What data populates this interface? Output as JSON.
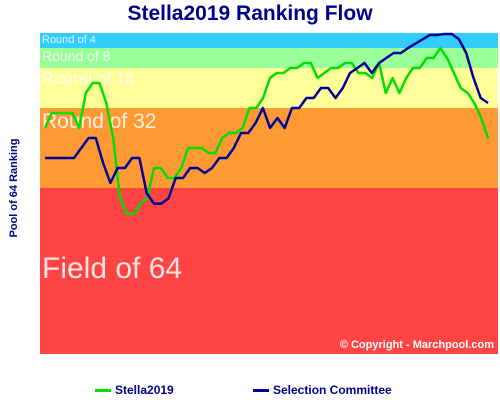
{
  "chart_data": {
    "type": "line",
    "title": "Stella2019 Ranking Flow",
    "ylabel": "Pool of 64 Ranking",
    "xlabel": "",
    "bands": [
      {
        "label": "Round of 4",
        "from": 1,
        "to": 4,
        "color": "#33ccff"
      },
      {
        "label": "Round of 8",
        "from": 5,
        "to": 8,
        "color": "#99ff99"
      },
      {
        "label": "Round of 16",
        "from": 9,
        "to": 16,
        "color": "#ffff99"
      },
      {
        "label": "Round of 32",
        "from": 17,
        "to": 32,
        "color": "#ff9933"
      },
      {
        "label": "Field of 64",
        "from": 33,
        "to": 64,
        "color": "#ff4444"
      }
    ],
    "top_strips": [
      {
        "from": 0,
        "to": 0.4,
        "color": "#9966cc"
      },
      {
        "from": 0.4,
        "to": 1,
        "color": "#3399ff"
      }
    ],
    "ylim": [
      0,
      64
    ],
    "series": [
      {
        "name": "Stella2019",
        "color": "#00e000",
        "values": [
          20,
          17,
          17,
          17,
          17,
          20,
          13,
          11,
          11,
          15,
          22,
          34,
          37,
          37,
          35,
          34,
          28,
          28,
          30,
          30,
          28,
          24,
          24,
          24,
          25,
          25,
          22,
          21,
          21,
          20,
          16,
          16,
          14,
          10,
          9,
          9,
          8,
          8,
          7,
          7,
          10,
          9,
          8,
          8,
          7,
          7,
          9,
          9,
          10,
          7,
          13,
          10,
          13,
          10,
          8,
          8,
          6,
          6,
          4,
          6,
          9,
          12,
          13,
          15,
          18,
          22
        ],
        "x": [
          0,
          1,
          2,
          3,
          4,
          5,
          6,
          7,
          8,
          9,
          10,
          11,
          12,
          13,
          14,
          15,
          16,
          17,
          18,
          19,
          20,
          21,
          22,
          23,
          24,
          25,
          26,
          27,
          28,
          29,
          30,
          31,
          32,
          33,
          34,
          35,
          36,
          37,
          38,
          39,
          40,
          41,
          42,
          43,
          44,
          45,
          46,
          47,
          48,
          49,
          50,
          51,
          52,
          53,
          54,
          55,
          56,
          57,
          58,
          59,
          60,
          61,
          62,
          63,
          64,
          65
        ]
      },
      {
        "name": "Selection Committee",
        "color": "#000099",
        "values": [
          26,
          26,
          26,
          26,
          26,
          24,
          22,
          22,
          27,
          31,
          28,
          28,
          26,
          26,
          33,
          35,
          35,
          34,
          30,
          30,
          28,
          28,
          29,
          28,
          26,
          26,
          24,
          21,
          21,
          19,
          16,
          20,
          18,
          20,
          16,
          16,
          14,
          14,
          12,
          12,
          14,
          12,
          9,
          8,
          7,
          9,
          7,
          6,
          5,
          5,
          4,
          3,
          2,
          1,
          1,
          0.5,
          0.5,
          2,
          5,
          10,
          14,
          15
        ]
      }
    ],
    "legend": [
      "Stella2019",
      "Selection Committee"
    ],
    "legend_position": "bottom",
    "annotation": "© Copyright - Marchpool.com"
  }
}
